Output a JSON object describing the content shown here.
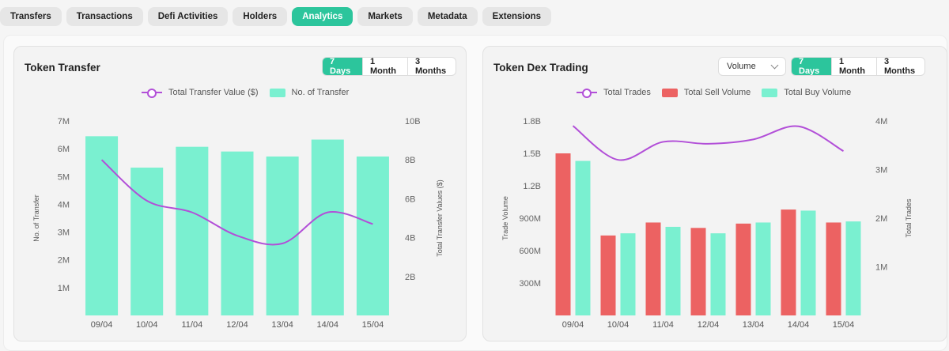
{
  "tabs": [
    {
      "label": "Transfers",
      "active": false
    },
    {
      "label": "Transactions",
      "active": false
    },
    {
      "label": "Defi Activities",
      "active": false
    },
    {
      "label": "Holders",
      "active": false
    },
    {
      "label": "Analytics",
      "active": true
    },
    {
      "label": "Markets",
      "active": false
    },
    {
      "label": "Metadata",
      "active": false
    },
    {
      "label": "Extensions",
      "active": false
    }
  ],
  "colors": {
    "accent": "#2cc59c",
    "bar_green": "#7af0d0",
    "bar_red": "#ec6262",
    "line_purple": "#b24fd8"
  },
  "transfer_card": {
    "title": "Token Transfer",
    "ranges": [
      "7 Days",
      "1 Month",
      "3 Months"
    ],
    "active_range": "7 Days",
    "legend": {
      "line": "Total Transfer Value ($)",
      "bar": "No. of Transfer"
    }
  },
  "dex_card": {
    "title": "Token Dex Trading",
    "dropdown_value": "Volume",
    "ranges": [
      "7 Days",
      "1 Month",
      "3 Months"
    ],
    "active_range": "7 Days",
    "legend": {
      "line": "Total Trades",
      "sell": "Total Sell Volume",
      "buy": "Total Buy Volume"
    }
  },
  "chart_data": [
    {
      "type": "bar",
      "title": "Token Transfer",
      "categories": [
        "09/04",
        "10/04",
        "11/04",
        "12/04",
        "13/04",
        "14/04",
        "15/04"
      ],
      "ylabel": "No. of Transfer",
      "y2label": "Total Transfer Values ($)",
      "ylim": [
        0,
        7000000
      ],
      "y2lim": [
        0,
        10000000000
      ],
      "y_ticks": [
        "1M",
        "2M",
        "3M",
        "4M",
        "5M",
        "6M",
        "7M"
      ],
      "y2_ticks": [
        "2B",
        "4B",
        "6B",
        "8B",
        "10B"
      ],
      "grid": false,
      "series": [
        {
          "name": "No. of Transfer",
          "kind": "bar",
          "axis": "left",
          "values": [
            6450000,
            5320000,
            6070000,
            5900000,
            5720000,
            6330000,
            5720000
          ]
        },
        {
          "name": "Total Transfer Value ($)",
          "kind": "line",
          "axis": "right",
          "values": [
            8000000000,
            5900000000,
            5300000000,
            4100000000,
            3700000000,
            5300000000,
            4700000000
          ]
        }
      ]
    },
    {
      "type": "bar",
      "title": "Token Dex Trading",
      "categories": [
        "09/04",
        "10/04",
        "11/04",
        "12/04",
        "13/04",
        "14/04",
        "15/04"
      ],
      "ylabel": "Trade Volume",
      "y2label": "Total Trades",
      "ylim": [
        0,
        1800000000
      ],
      "y2lim": [
        0,
        4000000
      ],
      "y_ticks": [
        "300M",
        "600M",
        "900M",
        "1.2B",
        "1.5B",
        "1.8B"
      ],
      "y2_ticks": [
        "1M",
        "2M",
        "3M",
        "4M"
      ],
      "grid": false,
      "series": [
        {
          "name": "Total Sell Volume",
          "kind": "bar",
          "axis": "left",
          "values": [
            1500000000,
            740000000,
            860000000,
            810000000,
            850000000,
            980000000,
            860000000
          ]
        },
        {
          "name": "Total Buy Volume",
          "kind": "bar",
          "axis": "left",
          "values": [
            1430000000,
            760000000,
            820000000,
            760000000,
            860000000,
            970000000,
            870000000
          ]
        },
        {
          "name": "Total Trades",
          "kind": "line",
          "axis": "right",
          "values": [
            3900000,
            3200000,
            3570000,
            3530000,
            3620000,
            3890000,
            3380000
          ]
        }
      ]
    }
  ]
}
